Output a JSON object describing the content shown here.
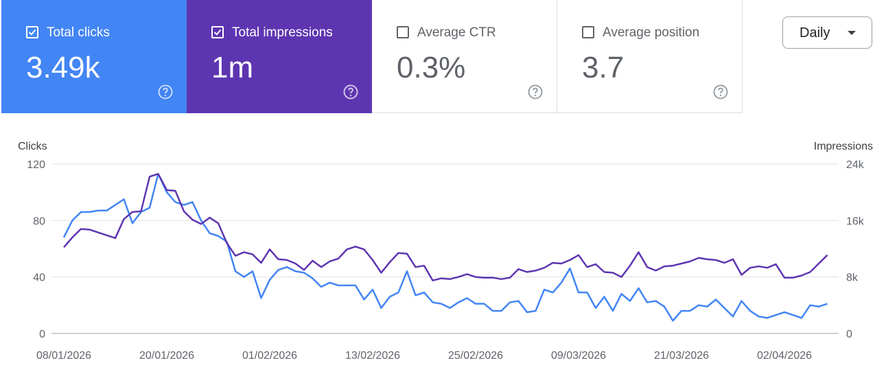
{
  "metrics": [
    {
      "label": "Total clicks",
      "value": "3.49k",
      "checked": true,
      "color": "#4285f4"
    },
    {
      "label": "Total impressions",
      "value": "1m",
      "checked": true,
      "color": "#5e35b1"
    },
    {
      "label": "Average CTR",
      "value": "0.3%",
      "checked": false,
      "color": "#ffffff"
    },
    {
      "label": "Average position",
      "value": "3.7",
      "checked": false,
      "color": "#ffffff"
    }
  ],
  "period_select": {
    "value": "Daily",
    "icon": "dropdown-arrow-icon"
  },
  "chart_data": {
    "type": "line",
    "left_axis": {
      "title": "Clicks",
      "ylim": [
        0,
        120
      ],
      "ticks": [
        "0",
        "40",
        "80",
        "120"
      ]
    },
    "right_axis": {
      "title": "Impressions",
      "ylim": [
        0,
        24000
      ],
      "ticks": [
        "0",
        "8k",
        "16k",
        "24k"
      ]
    },
    "x_tick_labels": [
      "08/01/2026",
      "20/01/2026",
      "01/02/2026",
      "13/02/2026",
      "25/02/2026",
      "09/03/2026",
      "21/03/2026",
      "02/04/2026"
    ],
    "series": [
      {
        "name": "Total clicks",
        "axis": "left",
        "color": "#4285f4",
        "values": [
          68,
          80,
          86,
          86,
          87,
          87,
          91,
          95,
          78,
          86,
          89,
          113,
          100,
          93,
          91,
          93,
          80,
          71,
          69,
          65,
          44,
          40,
          44,
          25,
          38,
          45,
          47,
          44,
          43,
          39,
          33,
          36,
          34,
          34,
          34,
          24,
          31,
          18,
          26,
          29,
          44,
          27,
          29,
          22,
          21,
          18,
          22,
          25,
          21,
          21,
          16,
          16,
          22,
          23,
          15,
          16,
          31,
          29,
          36,
          46,
          29,
          29,
          18,
          26,
          16,
          28,
          23,
          32,
          22,
          23,
          19,
          9,
          16,
          16,
          20,
          19,
          24,
          18,
          12,
          23,
          16,
          12,
          11,
          13,
          15,
          13,
          11,
          20,
          19,
          21
        ]
      },
      {
        "name": "Total impressions",
        "axis": "right",
        "color": "#5e35b1",
        "values": [
          12200,
          13600,
          14800,
          14700,
          14300,
          13900,
          13500,
          16200,
          17200,
          17300,
          22200,
          22600,
          20300,
          20200,
          17300,
          16100,
          15500,
          16400,
          15600,
          12800,
          11000,
          11500,
          11200,
          10000,
          11900,
          10500,
          10400,
          9900,
          9000,
          10300,
          9400,
          10200,
          10600,
          11900,
          12300,
          11900,
          10400,
          8600,
          10100,
          11400,
          11300,
          9400,
          9600,
          7500,
          7800,
          7700,
          8000,
          8400,
          8000,
          7900,
          7900,
          7700,
          7900,
          9100,
          8700,
          8900,
          9300,
          10000,
          9900,
          10400,
          11100,
          9400,
          9800,
          8700,
          8600,
          8000,
          9600,
          11500,
          9400,
          8900,
          9500,
          9600,
          9900,
          10200,
          10700,
          10500,
          10400,
          10000,
          10500,
          8300,
          9300,
          9500,
          9300,
          9800,
          7900,
          7900,
          8200,
          8700,
          9900,
          11100
        ]
      }
    ]
  }
}
